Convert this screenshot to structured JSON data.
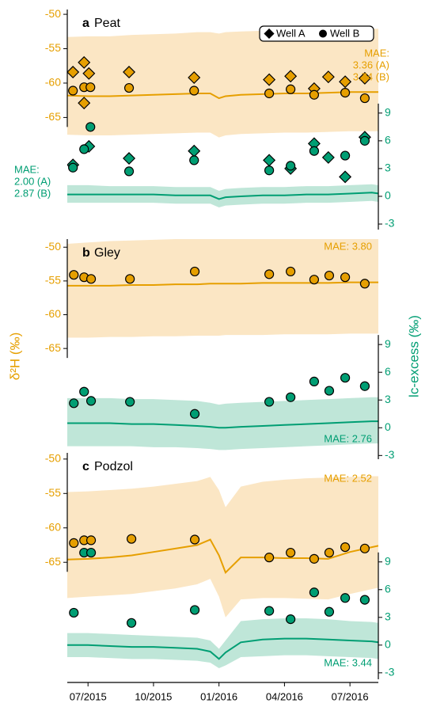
{
  "axes": {
    "y_label": "δ²H (‰)",
    "y2_label": "lc-excess (‰)",
    "y_color": "#e69f00",
    "y2_color": "#009e73",
    "x_axis": {
      "xlim": [
        -0.95,
        13.3
      ],
      "xticks": [
        {
          "value": 0,
          "label": "07/2015"
        },
        {
          "value": 3,
          "label": "10/2015"
        },
        {
          "value": 6,
          "label": "01/2016"
        },
        {
          "value": 9,
          "label": "04/2016"
        },
        {
          "value": 12,
          "label": "07/2016"
        }
      ]
    }
  },
  "chart_data": [
    {
      "type": "scatter",
      "panel_label": "a",
      "title": "Peat",
      "ylim": [
        -81.3,
        -49.3
      ],
      "yticks": [
        -65,
        -60,
        -55,
        -50
      ],
      "y2lim": [
        -3.6,
        20.2
      ],
      "y2ticks": [
        -3,
        0,
        3,
        6,
        9
      ],
      "legend": [
        {
          "name": "Well A",
          "marker": "diamond"
        },
        {
          "name": "Well B",
          "marker": "circle"
        }
      ],
      "annotations": [
        {
          "lines": [
            "MAE:",
            "3.36 (A)",
            "3.74 (B)"
          ],
          "color": "#e69f00"
        },
        {
          "lines": [
            "MAE:",
            "2.00 (A)",
            "2.87 (B)"
          ],
          "color": "#009e73"
        }
      ],
      "model_x": [
        -0.95,
        0,
        1,
        2,
        3,
        4,
        5,
        5.6,
        6,
        6.3,
        7,
        8,
        9,
        10,
        11,
        12,
        13,
        13.3
      ],
      "lines": [
        {
          "axis": "y",
          "color": "#e69f00",
          "band_color": "#fbe6c4",
          "values": [
            -61.8,
            -61.9,
            -61.9,
            -61.8,
            -61.7,
            -61.6,
            -61.5,
            -61.5,
            -62.2,
            -61.9,
            -61.7,
            -61.6,
            -61.5,
            -61.5,
            -61.4,
            -61.3,
            -61.3,
            -61.3
          ],
          "upper": [
            -53.3,
            -53.2,
            -53.2,
            -53.0,
            -52.9,
            -52.8,
            -52.6,
            -52.6,
            -52.8,
            -52.6,
            -52.5,
            -52.4,
            -52.3,
            -52.3,
            -52.2,
            -52.2,
            -52.1,
            -52.1
          ],
          "lower": [
            -67.5,
            -67.6,
            -67.6,
            -67.5,
            -67.4,
            -67.3,
            -67.2,
            -67.2,
            -67.9,
            -67.6,
            -67.4,
            -67.3,
            -67.2,
            -67.2,
            -67.1,
            -67.0,
            -67.0,
            -67.0
          ]
        },
        {
          "axis": "y2",
          "color": "#009e73",
          "band_color": "#bfe6d8",
          "values": [
            0.2,
            0.2,
            0.2,
            0.2,
            0.2,
            0.1,
            0.1,
            0.1,
            -0.3,
            -0.1,
            0.0,
            0.1,
            0.1,
            0.2,
            0.2,
            0.3,
            0.4,
            0.3
          ],
          "upper": [
            1.2,
            1.2,
            1.1,
            1.1,
            1.1,
            1.0,
            1.0,
            1.0,
            0.6,
            0.8,
            0.9,
            1.0,
            1.0,
            1.1,
            1.1,
            1.2,
            1.3,
            1.2
          ],
          "lower": [
            -0.7,
            -0.7,
            -0.7,
            -0.7,
            -0.7,
            -0.8,
            -0.8,
            -0.8,
            -1.2,
            -1.0,
            -0.9,
            -0.8,
            -0.8,
            -0.7,
            -0.7,
            -0.6,
            -0.5,
            -0.6
          ]
        }
      ],
      "series": [
        {
          "axis": "y",
          "marker": "diamond",
          "color": "#e69f00",
          "x": [
            -0.69,
            -0.18,
            0.04,
            -0.18,
            1.88,
            4.86,
            8.3,
            9.28,
            10.36,
            11.01,
            11.78,
            12.68
          ],
          "values": [
            -58.4,
            -57.0,
            -58.6,
            -62.9,
            -58.4,
            -59.2,
            -59.5,
            -59.0,
            -60.8,
            -59.1,
            -59.8,
            -59.3
          ]
        },
        {
          "axis": "y",
          "marker": "circle",
          "color": "#e69f00",
          "x": [
            -0.69,
            -0.18,
            0.11,
            1.88,
            4.86,
            8.3,
            9.28,
            10.36,
            11.78,
            12.68
          ],
          "values": [
            -61.1,
            -60.6,
            -60.6,
            -60.7,
            -61.1,
            -61.5,
            -60.9,
            -61.7,
            -61.4,
            -62.2
          ]
        },
        {
          "axis": "y2",
          "marker": "diamond",
          "color": "#009e73",
          "x": [
            -0.69,
            0.04,
            1.88,
            4.86,
            8.3,
            9.28,
            10.36,
            11.01,
            11.78,
            12.68
          ],
          "values": [
            3.4,
            5.4,
            4.1,
            4.9,
            3.9,
            3.0,
            5.7,
            4.2,
            2.1,
            6.4
          ]
        },
        {
          "axis": "y2",
          "marker": "circle",
          "color": "#009e73",
          "x": [
            -0.69,
            -0.18,
            0.11,
            1.88,
            4.86,
            8.3,
            9.28,
            10.36,
            11.78,
            12.68
          ],
          "values": [
            3.1,
            5.1,
            7.5,
            2.7,
            3.9,
            2.8,
            3.3,
            4.9,
            4.4,
            6.0
          ]
        }
      ]
    },
    {
      "type": "scatter",
      "panel_label": "b",
      "title": "Gley",
      "ylim": [
        -81.4,
        -48.8
      ],
      "yticks": [
        -65,
        -60,
        -55,
        -50
      ],
      "y2lim": [
        -3.4,
        20.4
      ],
      "y2ticks": [
        -3,
        0,
        3,
        6,
        9
      ],
      "annotations": [
        {
          "lines": [
            "MAE: 3.80"
          ],
          "color": "#e69f00"
        },
        {
          "lines": [
            "MAE: 2.76"
          ],
          "color": "#009e73"
        }
      ],
      "model_x": [
        -0.95,
        0,
        1,
        2,
        3,
        4,
        5,
        5.6,
        6,
        6.3,
        7,
        8,
        9,
        10,
        11,
        12,
        13,
        13.3
      ],
      "lines": [
        {
          "axis": "y",
          "color": "#e69f00",
          "band_color": "#fbe6c4",
          "values": [
            -55.7,
            -55.7,
            -55.7,
            -55.6,
            -55.6,
            -55.5,
            -55.5,
            -55.4,
            -55.4,
            -55.4,
            -55.4,
            -55.3,
            -55.3,
            -55.3,
            -55.3,
            -55.2,
            -55.2,
            -55.2
          ],
          "upper": [
            -49.5,
            -49.3,
            -49.1,
            -49.0,
            -48.9,
            -48.8,
            -48.8,
            -48.8,
            -48.8,
            -48.8,
            -48.8,
            -48.8,
            -48.8,
            -48.8,
            -48.8,
            -48.8,
            -48.8,
            -48.8
          ],
          "lower": [
            -63.4,
            -63.4,
            -63.3,
            -63.3,
            -63.2,
            -63.2,
            -63.1,
            -63.1,
            -63.1,
            -63.0,
            -63.0,
            -63.0,
            -62.9,
            -62.9,
            -62.9,
            -62.8,
            -62.8,
            -62.8
          ]
        },
        {
          "axis": "y2",
          "color": "#009e73",
          "band_color": "#bfe6d8",
          "values": [
            0.5,
            0.5,
            0.5,
            0.4,
            0.4,
            0.3,
            0.2,
            0.1,
            0.0,
            0.0,
            0.1,
            0.2,
            0.3,
            0.4,
            0.5,
            0.6,
            0.7,
            0.7
          ],
          "upper": [
            3.2,
            3.2,
            3.2,
            3.1,
            3.1,
            3.0,
            2.9,
            2.7,
            2.5,
            2.6,
            2.7,
            2.8,
            2.9,
            3.0,
            3.1,
            3.2,
            3.3,
            3.3
          ],
          "lower": [
            -2.0,
            -2.0,
            -2.0,
            -2.0,
            -2.1,
            -2.1,
            -2.2,
            -2.3,
            -2.4,
            -2.4,
            -2.3,
            -2.2,
            -2.1,
            -2.0,
            -1.9,
            -1.8,
            -1.7,
            -1.7
          ]
        }
      ],
      "series": [
        {
          "axis": "y",
          "marker": "circle",
          "color": "#e69f00",
          "x": [
            -0.65,
            -0.18,
            0.14,
            1.92,
            4.89,
            8.3,
            9.28,
            10.36,
            11.05,
            11.78,
            12.68
          ],
          "values": [
            -54.1,
            -54.45,
            -54.7,
            -54.7,
            -53.6,
            -54.0,
            -53.6,
            -54.8,
            -54.2,
            -54.45,
            -55.4
          ]
        },
        {
          "axis": "y2",
          "marker": "circle",
          "color": "#009e73",
          "x": [
            -0.65,
            -0.18,
            0.14,
            1.92,
            4.89,
            8.3,
            9.28,
            10.36,
            11.05,
            11.78,
            12.68
          ],
          "values": [
            2.65,
            3.9,
            2.9,
            2.8,
            1.5,
            2.8,
            3.3,
            5.0,
            4.0,
            5.4,
            4.5
          ]
        }
      ]
    },
    {
      "type": "scatter",
      "panel_label": "c",
      "title": "Podzol",
      "ylim": [
        -82.0,
        -49.1
      ],
      "yticks": [
        -65,
        -60,
        -55,
        -50
      ],
      "y2lim": [
        -3.7,
        20.8
      ],
      "y2ticks": [
        -3,
        0,
        3,
        6,
        9
      ],
      "annotations": [
        {
          "lines": [
            "MAE: 2.52"
          ],
          "color": "#e69f00"
        },
        {
          "lines": [
            "MAE: 3.44"
          ],
          "color": "#009e73"
        }
      ],
      "model_x": [
        -0.95,
        0,
        1,
        2,
        3,
        4,
        5,
        5.6,
        6,
        6.3,
        7,
        8,
        9,
        10,
        11,
        12,
        13,
        13.3
      ],
      "lines": [
        {
          "axis": "y",
          "color": "#e69f00",
          "band_color": "#fbe6c4",
          "values": [
            -64.6,
            -64.5,
            -64.3,
            -64.0,
            -63.5,
            -63.0,
            -62.5,
            -61.7,
            -64.0,
            -66.5,
            -64.3,
            -64.3,
            -64.4,
            -64.4,
            -64.5,
            -63.5,
            -62.8,
            -62.6
          ],
          "upper": [
            -54.8,
            -54.7,
            -54.5,
            -54.3,
            -54.0,
            -53.6,
            -53.2,
            -52.6,
            -54.5,
            -57.0,
            -54.0,
            -53.3,
            -53.0,
            -52.8,
            -52.7,
            -52.6,
            -52.5,
            -52.5
          ],
          "lower": [
            -70.2,
            -70.0,
            -69.8,
            -69.6,
            -69.2,
            -68.8,
            -68.2,
            -67.4,
            -70.0,
            -73.0,
            -70.4,
            -70.2,
            -70.2,
            -70.3,
            -70.4,
            -69.6,
            -68.9,
            -68.7
          ]
        },
        {
          "axis": "y2",
          "color": "#009e73",
          "band_color": "#bfe6d8",
          "values": [
            0.0,
            0.0,
            -0.1,
            -0.2,
            -0.2,
            -0.3,
            -0.4,
            -0.7,
            -1.5,
            -0.8,
            0.3,
            0.6,
            0.7,
            0.7,
            0.6,
            0.5,
            0.4,
            0.3
          ],
          "upper": [
            1.3,
            1.3,
            1.2,
            1.1,
            1.0,
            0.9,
            0.8,
            0.5,
            -0.4,
            0.5,
            2.6,
            2.8,
            2.9,
            2.9,
            2.8,
            2.6,
            2.5,
            2.4
          ],
          "lower": [
            -1.3,
            -1.3,
            -1.4,
            -1.5,
            -1.5,
            -1.6,
            -1.7,
            -1.9,
            -2.5,
            -2.2,
            -1.3,
            -1.2,
            -1.1,
            -1.1,
            -1.2,
            -1.3,
            -1.4,
            -1.5
          ]
        }
      ],
      "series": [
        {
          "axis": "y",
          "marker": "circle",
          "color": "#e69f00",
          "x": [
            -0.65,
            -0.18,
            0.14,
            1.99,
            4.89,
            8.3,
            9.28,
            10.36,
            11.05,
            11.78,
            12.68
          ],
          "values": [
            -62.2,
            -61.8,
            -61.8,
            -61.6,
            -61.7,
            -64.3,
            -63.6,
            -64.5,
            -63.6,
            -62.8,
            -63.0
          ]
        },
        {
          "axis": "y2",
          "marker": "circle",
          "color": "#009e73",
          "x": [
            -0.65,
            -0.18,
            0.14,
            1.99,
            4.89,
            8.3,
            9.28,
            10.36,
            11.05,
            11.78,
            12.68
          ],
          "values": [
            3.5,
            10.0,
            10.0,
            2.4,
            3.8,
            3.7,
            2.8,
            5.7,
            3.6,
            5.1,
            4.9
          ]
        }
      ]
    }
  ]
}
